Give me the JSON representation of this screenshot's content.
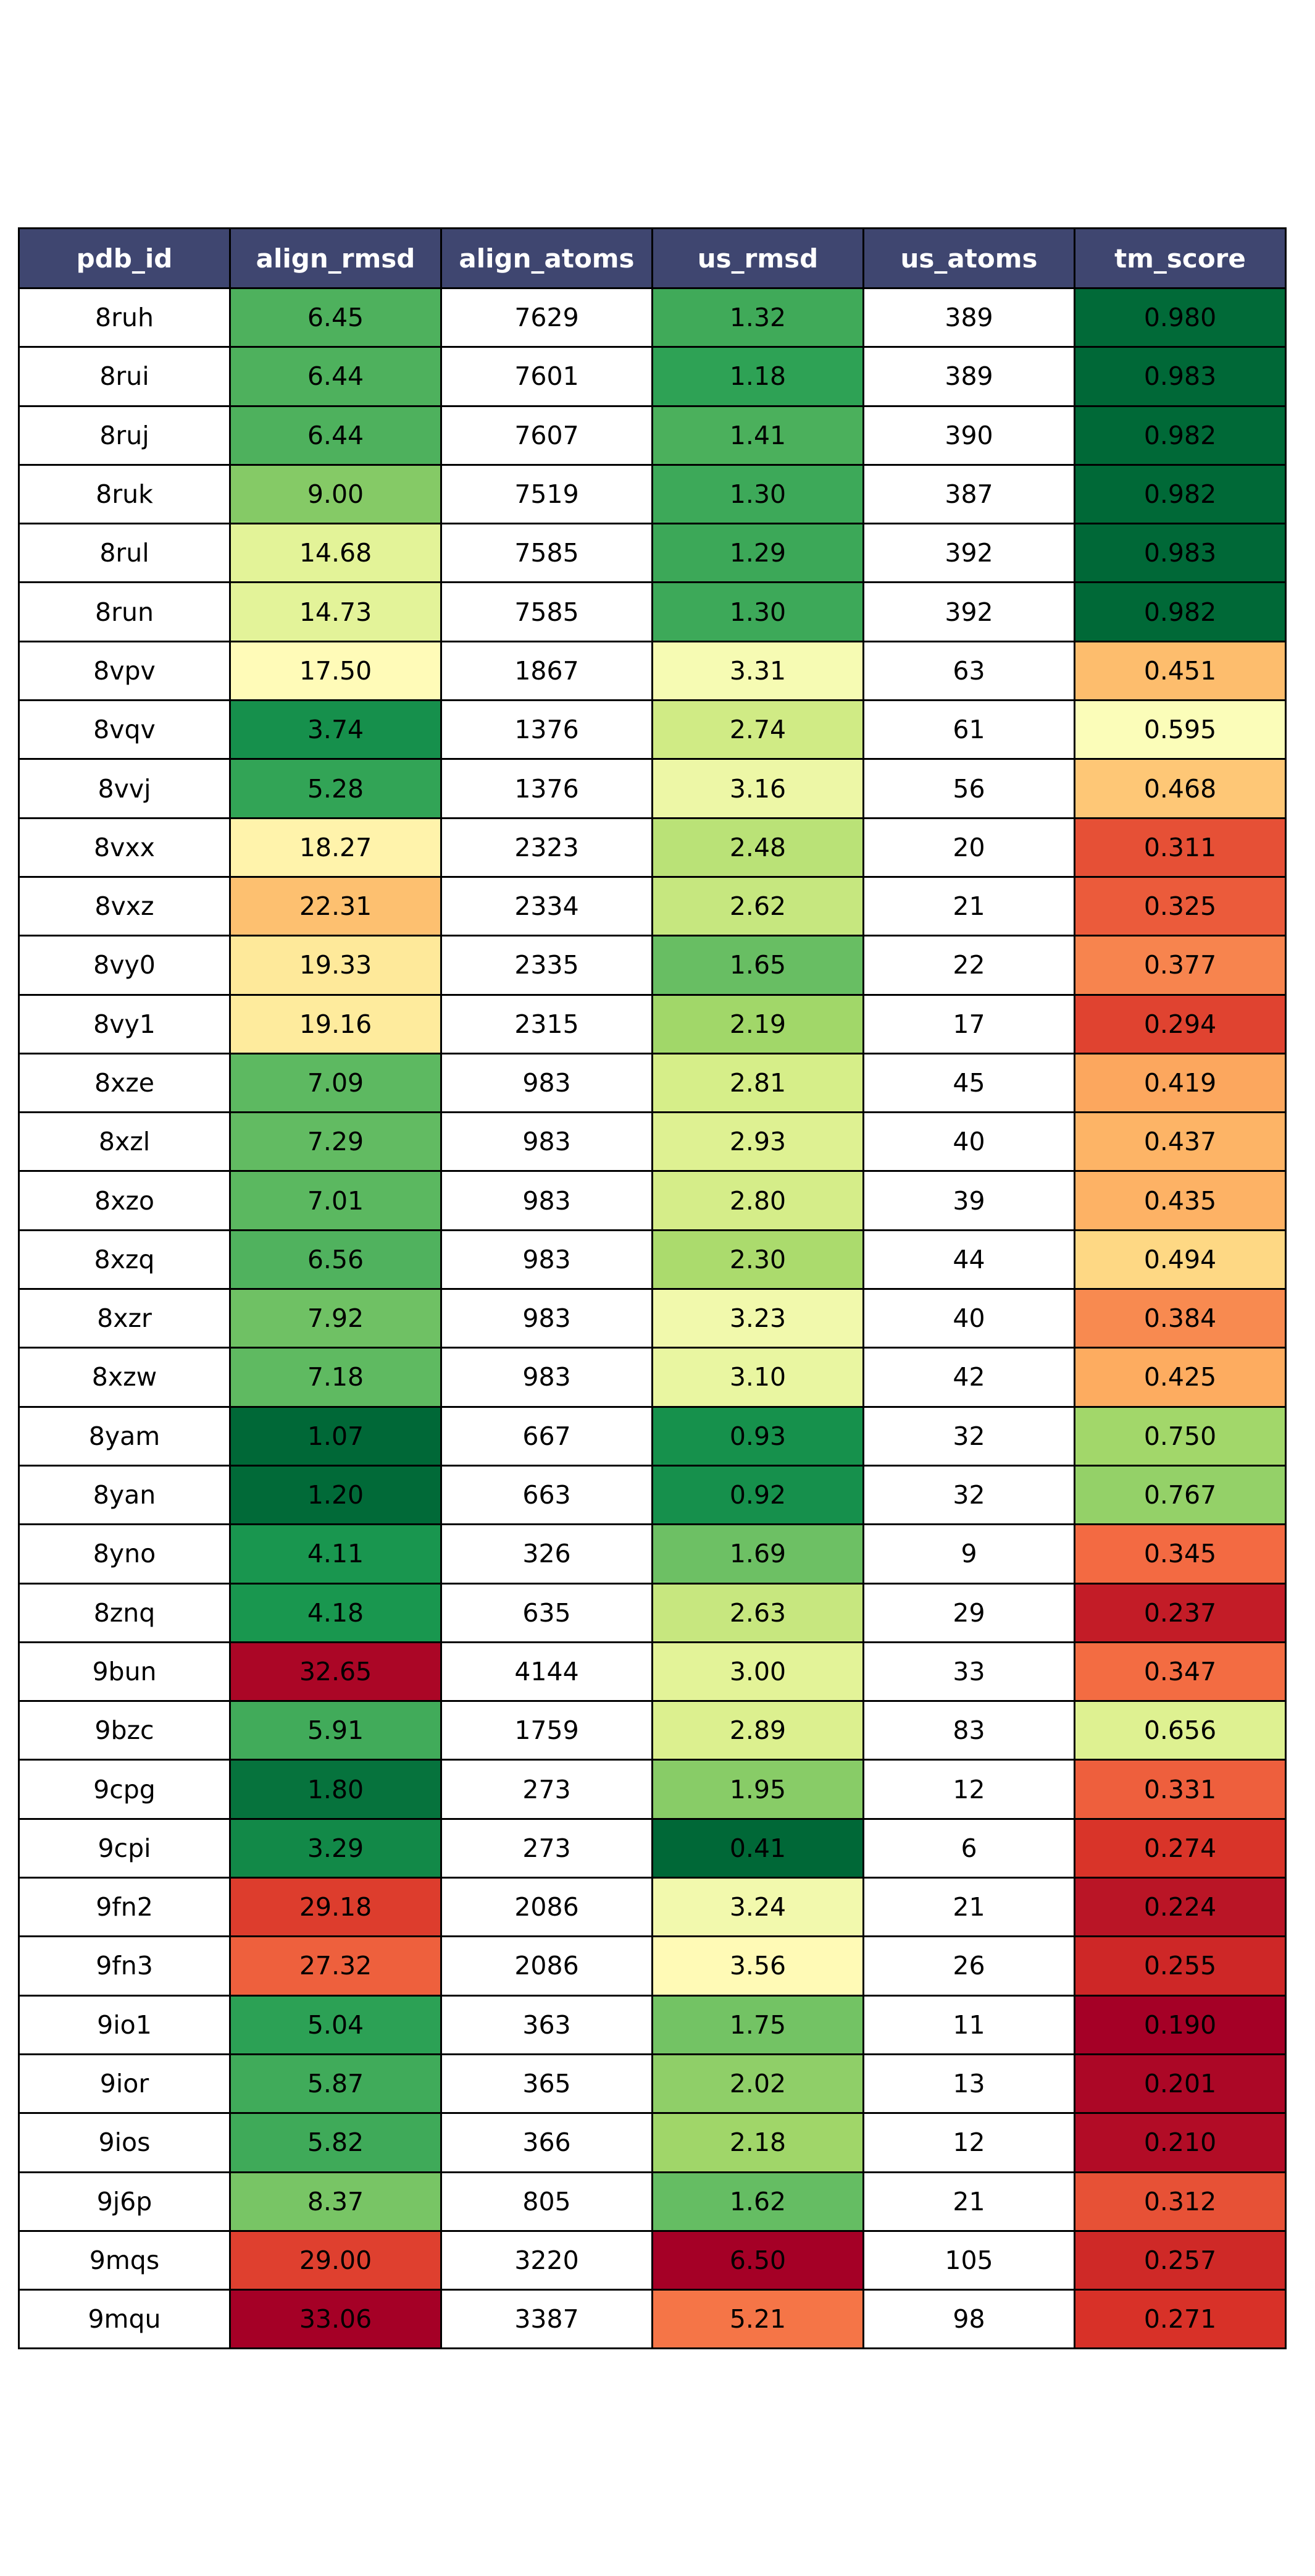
{
  "chart_data": {
    "type": "table",
    "columns": [
      "pdb_id",
      "align_rmsd",
      "align_atoms",
      "us_rmsd",
      "us_atoms",
      "tm_score"
    ],
    "colored_columns": [
      "align_rmsd",
      "us_rmsd",
      "tm_score"
    ],
    "colormap": "RdYlGn (align_rmsd, us_rmsd reversed: low = green, high = red; tm_score: high = green, low = red)",
    "header_color": "#3f4670",
    "rows": [
      {
        "pdb_id": "8ruh",
        "align_rmsd": "6.45",
        "align_atoms": "7629",
        "us_rmsd": "1.32",
        "us_atoms": "389",
        "tm_score": "0.980"
      },
      {
        "pdb_id": "8rui",
        "align_rmsd": "6.44",
        "align_atoms": "7601",
        "us_rmsd": "1.18",
        "us_atoms": "389",
        "tm_score": "0.983"
      },
      {
        "pdb_id": "8ruj",
        "align_rmsd": "6.44",
        "align_atoms": "7607",
        "us_rmsd": "1.41",
        "us_atoms": "390",
        "tm_score": "0.982"
      },
      {
        "pdb_id": "8ruk",
        "align_rmsd": "9.00",
        "align_atoms": "7519",
        "us_rmsd": "1.30",
        "us_atoms": "387",
        "tm_score": "0.982"
      },
      {
        "pdb_id": "8rul",
        "align_rmsd": "14.68",
        "align_atoms": "7585",
        "us_rmsd": "1.29",
        "us_atoms": "392",
        "tm_score": "0.983"
      },
      {
        "pdb_id": "8run",
        "align_rmsd": "14.73",
        "align_atoms": "7585",
        "us_rmsd": "1.30",
        "us_atoms": "392",
        "tm_score": "0.982"
      },
      {
        "pdb_id": "8vpv",
        "align_rmsd": "17.50",
        "align_atoms": "1867",
        "us_rmsd": "3.31",
        "us_atoms": "63",
        "tm_score": "0.451"
      },
      {
        "pdb_id": "8vqv",
        "align_rmsd": "3.74",
        "align_atoms": "1376",
        "us_rmsd": "2.74",
        "us_atoms": "61",
        "tm_score": "0.595"
      },
      {
        "pdb_id": "8vvj",
        "align_rmsd": "5.28",
        "align_atoms": "1376",
        "us_rmsd": "3.16",
        "us_atoms": "56",
        "tm_score": "0.468"
      },
      {
        "pdb_id": "8vxx",
        "align_rmsd": "18.27",
        "align_atoms": "2323",
        "us_rmsd": "2.48",
        "us_atoms": "20",
        "tm_score": "0.311"
      },
      {
        "pdb_id": "8vxz",
        "align_rmsd": "22.31",
        "align_atoms": "2334",
        "us_rmsd": "2.62",
        "us_atoms": "21",
        "tm_score": "0.325"
      },
      {
        "pdb_id": "8vy0",
        "align_rmsd": "19.33",
        "align_atoms": "2335",
        "us_rmsd": "1.65",
        "us_atoms": "22",
        "tm_score": "0.377"
      },
      {
        "pdb_id": "8vy1",
        "align_rmsd": "19.16",
        "align_atoms": "2315",
        "us_rmsd": "2.19",
        "us_atoms": "17",
        "tm_score": "0.294"
      },
      {
        "pdb_id": "8xze",
        "align_rmsd": "7.09",
        "align_atoms": "983",
        "us_rmsd": "2.81",
        "us_atoms": "45",
        "tm_score": "0.419"
      },
      {
        "pdb_id": "8xzl",
        "align_rmsd": "7.29",
        "align_atoms": "983",
        "us_rmsd": "2.93",
        "us_atoms": "40",
        "tm_score": "0.437"
      },
      {
        "pdb_id": "8xzo",
        "align_rmsd": "7.01",
        "align_atoms": "983",
        "us_rmsd": "2.80",
        "us_atoms": "39",
        "tm_score": "0.435"
      },
      {
        "pdb_id": "8xzq",
        "align_rmsd": "6.56",
        "align_atoms": "983",
        "us_rmsd": "2.30",
        "us_atoms": "44",
        "tm_score": "0.494"
      },
      {
        "pdb_id": "8xzr",
        "align_rmsd": "7.92",
        "align_atoms": "983",
        "us_rmsd": "3.23",
        "us_atoms": "40",
        "tm_score": "0.384"
      },
      {
        "pdb_id": "8xzw",
        "align_rmsd": "7.18",
        "align_atoms": "983",
        "us_rmsd": "3.10",
        "us_atoms": "42",
        "tm_score": "0.425"
      },
      {
        "pdb_id": "8yam",
        "align_rmsd": "1.07",
        "align_atoms": "667",
        "us_rmsd": "0.93",
        "us_atoms": "32",
        "tm_score": "0.750"
      },
      {
        "pdb_id": "8yan",
        "align_rmsd": "1.20",
        "align_atoms": "663",
        "us_rmsd": "0.92",
        "us_atoms": "32",
        "tm_score": "0.767"
      },
      {
        "pdb_id": "8yno",
        "align_rmsd": "4.11",
        "align_atoms": "326",
        "us_rmsd": "1.69",
        "us_atoms": "9",
        "tm_score": "0.345"
      },
      {
        "pdb_id": "8znq",
        "align_rmsd": "4.18",
        "align_atoms": "635",
        "us_rmsd": "2.63",
        "us_atoms": "29",
        "tm_score": "0.237"
      },
      {
        "pdb_id": "9bun",
        "align_rmsd": "32.65",
        "align_atoms": "4144",
        "us_rmsd": "3.00",
        "us_atoms": "33",
        "tm_score": "0.347"
      },
      {
        "pdb_id": "9bzc",
        "align_rmsd": "5.91",
        "align_atoms": "1759",
        "us_rmsd": "2.89",
        "us_atoms": "83",
        "tm_score": "0.656"
      },
      {
        "pdb_id": "9cpg",
        "align_rmsd": "1.80",
        "align_atoms": "273",
        "us_rmsd": "1.95",
        "us_atoms": "12",
        "tm_score": "0.331"
      },
      {
        "pdb_id": "9cpi",
        "align_rmsd": "3.29",
        "align_atoms": "273",
        "us_rmsd": "0.41",
        "us_atoms": "6",
        "tm_score": "0.274"
      },
      {
        "pdb_id": "9fn2",
        "align_rmsd": "29.18",
        "align_atoms": "2086",
        "us_rmsd": "3.24",
        "us_atoms": "21",
        "tm_score": "0.224"
      },
      {
        "pdb_id": "9fn3",
        "align_rmsd": "27.32",
        "align_atoms": "2086",
        "us_rmsd": "3.56",
        "us_atoms": "26",
        "tm_score": "0.255"
      },
      {
        "pdb_id": "9io1",
        "align_rmsd": "5.04",
        "align_atoms": "363",
        "us_rmsd": "1.75",
        "us_atoms": "11",
        "tm_score": "0.190"
      },
      {
        "pdb_id": "9ior",
        "align_rmsd": "5.87",
        "align_atoms": "365",
        "us_rmsd": "2.02",
        "us_atoms": "13",
        "tm_score": "0.201"
      },
      {
        "pdb_id": "9ios",
        "align_rmsd": "5.82",
        "align_atoms": "366",
        "us_rmsd": "2.18",
        "us_atoms": "12",
        "tm_score": "0.210"
      },
      {
        "pdb_id": "9j6p",
        "align_rmsd": "8.37",
        "align_atoms": "805",
        "us_rmsd": "1.62",
        "us_atoms": "21",
        "tm_score": "0.312"
      },
      {
        "pdb_id": "9mqs",
        "align_rmsd": "29.00",
        "align_atoms": "3220",
        "us_rmsd": "6.50",
        "us_atoms": "105",
        "tm_score": "0.257"
      },
      {
        "pdb_id": "9mqu",
        "align_rmsd": "33.06",
        "align_atoms": "3387",
        "us_rmsd": "5.21",
        "us_atoms": "98",
        "tm_score": "0.271"
      }
    ]
  }
}
